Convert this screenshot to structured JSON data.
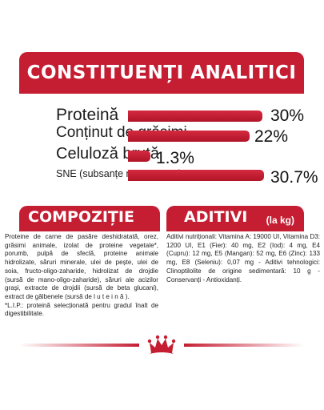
{
  "title": "CONSTITUENȚI ANALITICI",
  "analytics": [
    {
      "label": "Proteină",
      "value": "30%",
      "fraction": 0.3
    },
    {
      "label": "Conținut de grăsimi",
      "value": "22%",
      "fraction": 0.22
    },
    {
      "label": "Celuloză brută",
      "value": "1.3%",
      "fraction": 0.013
    },
    {
      "label": "SNE (subsanțe non azotate)",
      "value": "30.7%",
      "fraction": 0.307
    }
  ],
  "composition": {
    "title": "COMPOZIȚIE",
    "text": "Proteine de carne de pasăre deshidratată, orez, grăsimi animale, izolat de proteine vegetale*, porumb, pulpă de sfeclă, proteine animale hidrolizate, săruri minerale, ulei de pește, ulei de soia, fructo-oligo-zaharide, hidrolizat de drojdie (sursă de mano-oligo-zaharide), săruri ale acizilor grași, extracte de drojdii (sursă de beta glucani), extract de gălbenele (sursă de l u t e i n ă ).",
    "note": "*L.I.P.: proteină selecționată pentru gradul înalt de digestibilitate."
  },
  "additives": {
    "title": "ADITIVI",
    "unit": "(la kg)",
    "text": "Aditivi nutriționali: Vitamina A: 19000 UI, Vitamina D3: 1200 UI, E1 (Fier): 40 mg, E2 (Iod): 4 mg, E4 (Cupru): 12 mg, E5 (Mangan): 52 mg, E6 (Zinc): 133 mg, E8 (Seleniu): 0,07 mg - Aditivi tehnologici: Clinoptilolite de origine sedimentară: 10 g - Conservanți - Antioxidanți."
  },
  "colors": {
    "brand_red": "#c51d32",
    "text": "#1c1c1c"
  },
  "logo": {
    "icon": "royal-canin-crown-icon"
  }
}
